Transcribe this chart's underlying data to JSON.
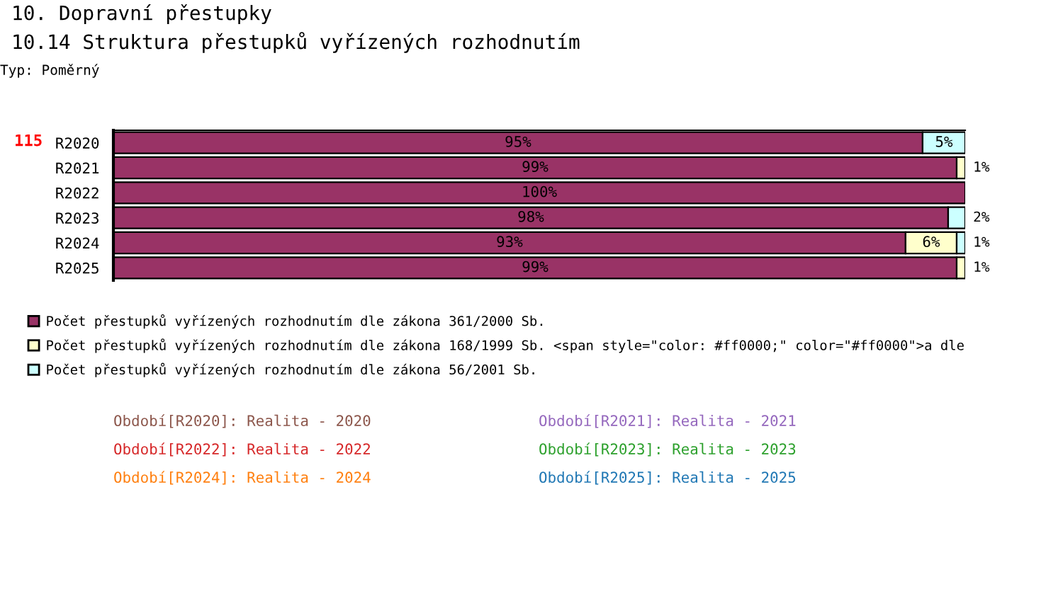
{
  "chart_data": {
    "type": "bar",
    "orientation": "horizontal",
    "stacked": true,
    "title": "10. Dopravní přestupky",
    "subtitle": "10.14 Struktura přestupků vyřízených rozhodnutím",
    "categories": [
      "R2020",
      "R2021",
      "R2022",
      "R2023",
      "R2024",
      "R2025"
    ],
    "series": [
      {
        "name": "Počet přestupků vyřízených rozhodnutím dle zákona 361/2000 Sb.",
        "color": "#993366",
        "values": [
          95,
          99,
          100,
          98,
          93,
          99
        ],
        "value_labels": [
          "95%",
          "99%",
          "100%",
          "98%",
          "93%",
          "99%"
        ]
      },
      {
        "name": "Počet přestupků vyřízených rozhodnutím dle zákona 168/1999 Sb. <span style=\"color: #ff0000;\" color=\"#ff0000\">a dle",
        "color": "#ffffcc",
        "values": [
          null,
          1,
          null,
          null,
          6,
          1
        ],
        "value_labels": [
          null,
          "1%",
          null,
          null,
          "6%",
          "1%"
        ]
      },
      {
        "name": "Počet přestupků vyřízených rozhodnutím dle zákona 56/2001 Sb.",
        "color": "#ccffff",
        "values": [
          5,
          null,
          null,
          2,
          1,
          null
        ],
        "value_labels": [
          "5%",
          null,
          null,
          "2%",
          "1%",
          null
        ]
      }
    ],
    "legend": "bottom",
    "grid": false,
    "tick_labels": "y",
    "annotations": [
      "Typ: Poměrný",
      "115",
      "Období[R2020]: Realita - 2020",
      "Období[R2021]: Realita - 2021",
      "Období[R2022]: Realita - 2022",
      "Období[R2023]: Realita - 2023",
      "Období[R2024]: Realita - 2024",
      "Období[R2025]: Realita - 2025"
    ]
  }
}
